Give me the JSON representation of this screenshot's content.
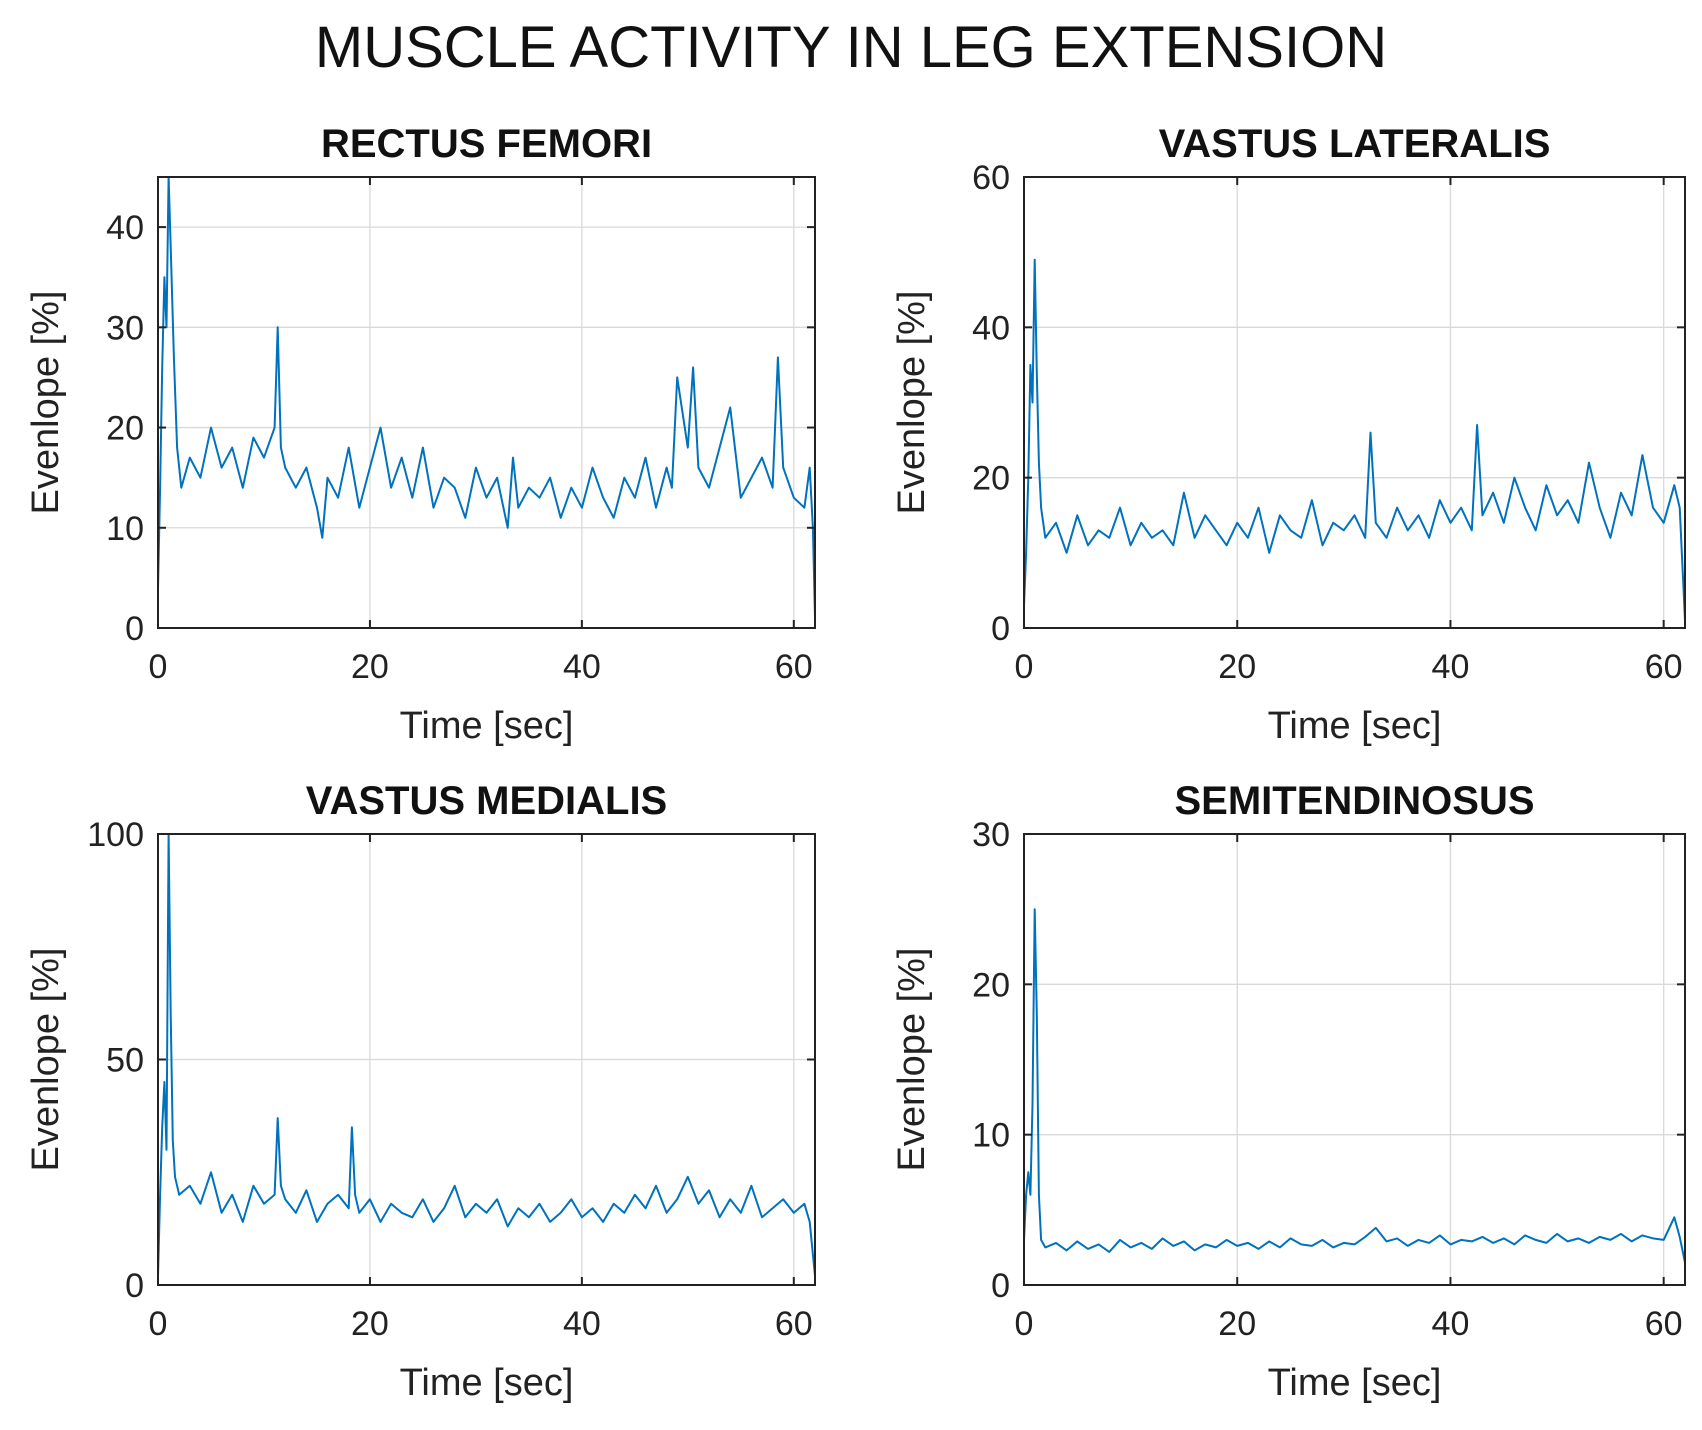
{
  "figure": {
    "title": "MUSCLE ACTIVITY IN LEG EXTENSION"
  },
  "chart_data": [
    {
      "type": "line",
      "title": "RECTUS FEMORI",
      "xlabel": "Time [sec]",
      "ylabel": "Evenlope [%]",
      "xlim": [
        0,
        62
      ],
      "ylim": [
        0,
        45
      ],
      "xticks": [
        0,
        20,
        40,
        60
      ],
      "yticks": [
        0,
        10,
        20,
        30,
        40
      ],
      "grid": true,
      "color": "#0072BD",
      "series": [
        {
          "x": [
            0,
            0.2,
            0.4,
            0.6,
            0.8,
            1.0,
            1.2,
            1.5,
            1.8,
            2.2,
            3,
            4,
            5,
            6,
            7,
            8,
            9,
            10,
            11,
            11.3,
            11.6,
            12,
            13,
            14,
            15,
            15.5,
            16,
            17,
            18,
            19,
            20,
            21,
            22,
            23,
            24,
            25,
            26,
            27,
            28,
            29,
            30,
            31,
            32,
            33,
            33.5,
            34,
            35,
            36,
            37,
            38,
            39,
            40,
            41,
            42,
            43,
            44,
            45,
            46,
            47,
            48,
            48.5,
            49,
            50,
            50.5,
            51,
            52,
            53,
            54,
            55,
            56,
            57,
            58,
            58.5,
            59,
            60,
            61,
            61.5,
            61.8,
            62
          ],
          "y": [
            4,
            14,
            26,
            35,
            30,
            45,
            38,
            27,
            18,
            14,
            17,
            15,
            20,
            16,
            18,
            14,
            19,
            17,
            20,
            30,
            18,
            16,
            14,
            16,
            12,
            9,
            15,
            13,
            18,
            12,
            16,
            20,
            14,
            17,
            13,
            18,
            12,
            15,
            14,
            11,
            16,
            13,
            15,
            10,
            17,
            12,
            14,
            13,
            15,
            11,
            14,
            12,
            16,
            13,
            11,
            15,
            13,
            17,
            12,
            16,
            14,
            25,
            18,
            26,
            16,
            14,
            18,
            22,
            13,
            15,
            17,
            14,
            27,
            16,
            13,
            12,
            16,
            10,
            1
          ]
        }
      ]
    },
    {
      "type": "line",
      "title": "VASTUS LATERALIS",
      "xlabel": "Time [sec]",
      "ylabel": "Evenlope [%]",
      "xlim": [
        0,
        62
      ],
      "ylim": [
        0,
        60
      ],
      "xticks": [
        0,
        20,
        40,
        60
      ],
      "yticks": [
        0,
        20,
        40,
        60
      ],
      "grid": true,
      "color": "#0072BD",
      "series": [
        {
          "x": [
            0,
            0.2,
            0.4,
            0.6,
            0.8,
            1.0,
            1.2,
            1.4,
            1.6,
            2.0,
            3,
            4,
            5,
            6,
            7,
            8,
            9,
            10,
            11,
            12,
            13,
            14,
            15,
            16,
            17,
            18,
            19,
            20,
            21,
            22,
            23,
            24,
            25,
            26,
            27,
            28,
            29,
            30,
            31,
            32,
            32.5,
            33,
            34,
            35,
            36,
            37,
            38,
            39,
            40,
            41,
            42,
            42.5,
            43,
            44,
            45,
            46,
            47,
            48,
            49,
            50,
            51,
            52,
            53,
            54,
            55,
            56,
            57,
            58,
            59,
            60,
            61,
            61.5,
            62
          ],
          "y": [
            3,
            10,
            20,
            35,
            30,
            49,
            34,
            22,
            16,
            12,
            14,
            10,
            15,
            11,
            13,
            12,
            16,
            11,
            14,
            12,
            13,
            11,
            18,
            12,
            15,
            13,
            11,
            14,
            12,
            16,
            10,
            15,
            13,
            12,
            17,
            11,
            14,
            13,
            15,
            12,
            26,
            14,
            12,
            16,
            13,
            15,
            12,
            17,
            14,
            16,
            13,
            27,
            15,
            18,
            14,
            20,
            16,
            13,
            19,
            15,
            17,
            14,
            22,
            16,
            12,
            18,
            15,
            23,
            16,
            14,
            19,
            16,
            1
          ]
        }
      ]
    },
    {
      "type": "line",
      "title": "VASTUS MEDIALIS",
      "xlabel": "Time [sec]",
      "ylabel": "Evenlope [%]",
      "xlim": [
        0,
        62
      ],
      "ylim": [
        0,
        100
      ],
      "xticks": [
        0,
        20,
        40,
        60
      ],
      "yticks": [
        0,
        50,
        100
      ],
      "grid": true,
      "color": "#0072BD",
      "series": [
        {
          "x": [
            0,
            0.2,
            0.4,
            0.6,
            0.8,
            1.0,
            1.2,
            1.4,
            1.6,
            2.0,
            3,
            4,
            5,
            6,
            7,
            8,
            9,
            10,
            11,
            11.3,
            11.6,
            12,
            13,
            14,
            15,
            16,
            17,
            18,
            18.3,
            18.6,
            19,
            20,
            21,
            22,
            23,
            24,
            25,
            26,
            27,
            28,
            29,
            30,
            31,
            32,
            33,
            34,
            35,
            36,
            37,
            38,
            39,
            40,
            41,
            42,
            43,
            44,
            45,
            46,
            47,
            48,
            49,
            50,
            51,
            52,
            53,
            54,
            55,
            56,
            57,
            58,
            59,
            60,
            61,
            61.5,
            62
          ],
          "y": [
            2,
            20,
            35,
            45,
            30,
            100,
            60,
            32,
            24,
            20,
            22,
            18,
            25,
            16,
            20,
            14,
            22,
            18,
            20,
            37,
            22,
            19,
            16,
            21,
            14,
            18,
            20,
            17,
            35,
            20,
            16,
            19,
            14,
            18,
            16,
            15,
            19,
            14,
            17,
            22,
            15,
            18,
            16,
            19,
            13,
            17,
            15,
            18,
            14,
            16,
            19,
            15,
            17,
            14,
            18,
            16,
            20,
            17,
            22,
            16,
            19,
            24,
            18,
            21,
            15,
            19,
            16,
            22,
            15,
            17,
            19,
            16,
            18,
            14,
            2
          ]
        }
      ]
    },
    {
      "type": "line",
      "title": "SEMITENDINOSUS",
      "xlabel": "Time [sec]",
      "ylabel": "Evenlope [%]",
      "xlim": [
        0,
        62
      ],
      "ylim": [
        0,
        30
      ],
      "xticks": [
        0,
        20,
        40,
        60
      ],
      "yticks": [
        0,
        10,
        20,
        30
      ],
      "grid": true,
      "color": "#0072BD",
      "series": [
        {
          "x": [
            0,
            0.2,
            0.4,
            0.6,
            0.8,
            1.0,
            1.2,
            1.4,
            1.6,
            2.0,
            3,
            4,
            5,
            6,
            7,
            8,
            9,
            10,
            11,
            12,
            13,
            14,
            15,
            16,
            17,
            18,
            19,
            20,
            21,
            22,
            23,
            24,
            25,
            26,
            27,
            28,
            29,
            30,
            31,
            32,
            33,
            34,
            35,
            36,
            37,
            38,
            39,
            40,
            41,
            42,
            43,
            44,
            45,
            46,
            47,
            48,
            49,
            50,
            51,
            52,
            53,
            54,
            55,
            56,
            57,
            58,
            59,
            60,
            61,
            61.5,
            62
          ],
          "y": [
            3,
            6,
            7.5,
            6,
            12,
            25,
            18,
            6,
            3,
            2.5,
            2.8,
            2.3,
            2.9,
            2.4,
            2.7,
            2.2,
            3.0,
            2.5,
            2.8,
            2.4,
            3.1,
            2.6,
            2.9,
            2.3,
            2.7,
            2.5,
            3.0,
            2.6,
            2.8,
            2.4,
            2.9,
            2.5,
            3.1,
            2.7,
            2.6,
            3.0,
            2.5,
            2.8,
            2.7,
            3.2,
            3.8,
            2.9,
            3.1,
            2.6,
            3.0,
            2.8,
            3.3,
            2.7,
            3.0,
            2.9,
            3.2,
            2.8,
            3.1,
            2.7,
            3.3,
            3.0,
            2.8,
            3.4,
            2.9,
            3.1,
            2.8,
            3.2,
            3.0,
            3.4,
            2.9,
            3.3,
            3.1,
            3.0,
            4.5,
            3.2,
            1.5
          ]
        }
      ]
    }
  ]
}
